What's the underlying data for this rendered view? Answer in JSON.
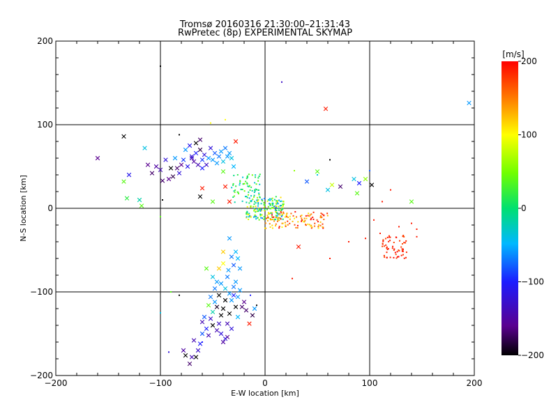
{
  "chart_data": {
    "type": "scatter",
    "title": "Tromsø 20160316 21:30:00–21:31:43",
    "subtitle": "RwPretec (8p) EXPERIMENTAL SKYMAP",
    "xlabel": "E-W location [km]",
    "ylabel": "N-S location [km]",
    "xlim": [
      -200,
      200
    ],
    "ylim": [
      -200,
      200
    ],
    "xticks": [
      "−200",
      "−100",
      "0",
      "100",
      "200"
    ],
    "yticks": [
      "−200",
      "−100",
      "0",
      "100",
      "200"
    ],
    "grid": [
      -100,
      0,
      100
    ],
    "colorbar": {
      "label": "[m/s]",
      "range": [
        -200,
        200
      ],
      "ticks": [
        "200",
        "100",
        "0",
        "−100",
        "−200"
      ],
      "colormap": "rainbow (black-purple-blue-cyan-green-yellow-orange-red)"
    },
    "series": [
      {
        "marker": "x",
        "points": [
          [
            -160,
            60,
            -160
          ],
          [
            -135,
            86,
            -200
          ],
          [
            -135,
            32,
            40
          ],
          [
            -132,
            12,
            20
          ],
          [
            -130,
            40,
            -110
          ],
          [
            -120,
            10,
            -20
          ],
          [
            -118,
            3,
            40
          ],
          [
            -115,
            72,
            -40
          ],
          [
            -112,
            52,
            -160
          ],
          [
            -108,
            42,
            -170
          ],
          [
            -104,
            50,
            -150
          ],
          [
            -100,
            46,
            -140
          ],
          [
            -98,
            33,
            -170
          ],
          [
            -95,
            58,
            -120
          ],
          [
            -92,
            35,
            -160
          ],
          [
            -90,
            48,
            -200
          ],
          [
            -88,
            38,
            -180
          ],
          [
            -86,
            60,
            -60
          ],
          [
            -84,
            48,
            -170
          ],
          [
            -82,
            42,
            -120
          ],
          [
            -80,
            52,
            -160
          ],
          [
            -78,
            58,
            -90
          ],
          [
            -76,
            70,
            -60
          ],
          [
            -74,
            50,
            -110
          ],
          [
            -72,
            75,
            -110
          ],
          [
            -70,
            60,
            -140
          ],
          [
            -68,
            56,
            -150
          ],
          [
            -66,
            66,
            -100
          ],
          [
            -64,
            52,
            -140
          ],
          [
            -62,
            70,
            -180
          ],
          [
            -60,
            58,
            -90
          ],
          [
            -58,
            64,
            -120
          ],
          [
            -56,
            52,
            -130
          ],
          [
            -54,
            60,
            -60
          ],
          [
            -52,
            72,
            -120
          ],
          [
            -50,
            58,
            -60
          ],
          [
            -48,
            66,
            -80
          ],
          [
            -46,
            54,
            -60
          ],
          [
            -44,
            62,
            -70
          ],
          [
            -42,
            68,
            -60
          ],
          [
            -40,
            56,
            -40
          ],
          [
            -38,
            72,
            -70
          ],
          [
            -36,
            62,
            -60
          ],
          [
            -34,
            66,
            -60
          ],
          [
            -32,
            60,
            -40
          ],
          [
            -30,
            50,
            -50
          ],
          [
            -62,
            82,
            -170
          ],
          [
            -66,
            78,
            -200
          ],
          [
            -70,
            62,
            -120
          ],
          [
            -60,
            48,
            -100
          ],
          [
            -28,
            80,
            190
          ],
          [
            -40,
            44,
            40
          ],
          [
            -38,
            26,
            190
          ],
          [
            -60,
            24,
            190
          ],
          [
            -62,
            14,
            -200
          ],
          [
            -34,
            8,
            190
          ],
          [
            -50,
            8,
            40
          ],
          [
            58,
            119,
            190
          ],
          [
            195,
            126,
            -60
          ],
          [
            102,
            28,
            -200
          ],
          [
            90,
            30,
            -100
          ],
          [
            96,
            35,
            60
          ],
          [
            85,
            35,
            -40
          ],
          [
            72,
            26,
            -170
          ],
          [
            64,
            28,
            80
          ],
          [
            60,
            22,
            -40
          ],
          [
            50,
            44,
            40
          ],
          [
            40,
            32,
            -80
          ],
          [
            140,
            8,
            40
          ],
          [
            88,
            18,
            40
          ],
          [
            32,
            -46,
            190
          ],
          [
            -10,
            -120,
            -60
          ],
          [
            -12,
            -128,
            -180
          ],
          [
            -15,
            -138,
            190
          ],
          [
            -18,
            -122,
            -170
          ],
          [
            -20,
            -112,
            -160
          ],
          [
            -22,
            -118,
            -170
          ],
          [
            -24,
            -98,
            -60
          ],
          [
            -26,
            -106,
            -60
          ],
          [
            -28,
            -88,
            -60
          ],
          [
            -28,
            -118,
            -200
          ],
          [
            -30,
            -94,
            -70
          ],
          [
            -30,
            -68,
            -80
          ],
          [
            -32,
            -58,
            -70
          ],
          [
            -32,
            -110,
            -60
          ],
          [
            -34,
            -102,
            -60
          ],
          [
            -34,
            -126,
            -200
          ],
          [
            -35,
            -74,
            -60
          ],
          [
            -36,
            -82,
            -70
          ],
          [
            -36,
            -138,
            -140
          ],
          [
            -38,
            -96,
            -40
          ],
          [
            -38,
            -110,
            -200
          ],
          [
            -40,
            -120,
            -200
          ],
          [
            -40,
            -66,
            100
          ],
          [
            -42,
            -90,
            -60
          ],
          [
            -42,
            -128,
            -200
          ],
          [
            -44,
            -104,
            -200
          ],
          [
            -44,
            -72,
            120
          ],
          [
            -46,
            -88,
            -60
          ],
          [
            -46,
            -118,
            -190
          ],
          [
            -48,
            -96,
            -70
          ],
          [
            -48,
            -112,
            -60
          ],
          [
            -50,
            -82,
            -40
          ],
          [
            -50,
            -124,
            -20
          ],
          [
            -52,
            -106,
            -70
          ],
          [
            -54,
            -116,
            40
          ],
          [
            -40,
            -52,
            120
          ],
          [
            -24,
            -72,
            -60
          ],
          [
            -26,
            -60,
            -50
          ],
          [
            -28,
            -52,
            -50
          ],
          [
            -30,
            -104,
            -100
          ],
          [
            -32,
            -144,
            -120
          ],
          [
            -36,
            -154,
            -160
          ],
          [
            -40,
            -160,
            -150
          ],
          [
            -42,
            -150,
            -120
          ],
          [
            -44,
            -138,
            -130
          ],
          [
            -46,
            -146,
            -140
          ],
          [
            -50,
            -140,
            -200
          ],
          [
            -52,
            -132,
            -130
          ],
          [
            -54,
            -152,
            -140
          ],
          [
            -56,
            -144,
            -100
          ],
          [
            -58,
            -130,
            -80
          ],
          [
            -60,
            -150,
            -80
          ],
          [
            -62,
            -162,
            -100
          ],
          [
            -64,
            -170,
            -130
          ],
          [
            -66,
            -178,
            -200
          ],
          [
            -68,
            -158,
            -140
          ],
          [
            -70,
            -178,
            -140
          ],
          [
            -72,
            -186,
            -170
          ],
          [
            -76,
            -176,
            -200
          ],
          [
            -78,
            -170,
            -150
          ],
          [
            -56,
            -72,
            40
          ],
          [
            -60,
            -136,
            -140
          ],
          [
            -38,
            -156,
            -120
          ],
          [
            -26,
            -130,
            -50
          ],
          [
            -34,
            -36,
            -60
          ]
        ]
      },
      {
        "marker": "dot",
        "points": [
          [
            -100,
            170,
            -200
          ],
          [
            -82,
            88,
            -200
          ],
          [
            -52,
            102,
            100
          ],
          [
            -38,
            106,
            100
          ],
          [
            16,
            151,
            -130
          ],
          [
            28,
            45,
            60
          ],
          [
            50,
            40,
            -40
          ],
          [
            62,
            58,
            -200
          ],
          [
            100,
            45,
            -80
          ],
          [
            112,
            8,
            190
          ],
          [
            120,
            22,
            190
          ],
          [
            140,
            -18,
            190
          ],
          [
            145,
            -25,
            190
          ],
          [
            145,
            -34,
            190
          ],
          [
            -98,
            10,
            -200
          ],
          [
            -100,
            -10,
            40
          ],
          [
            -90,
            -100,
            40
          ],
          [
            -82,
            -104,
            -200
          ],
          [
            -100,
            -125,
            -40
          ],
          [
            -92,
            -172,
            -120
          ],
          [
            -60,
            -160,
            -100
          ],
          [
            -8,
            -116,
            -200
          ],
          [
            -14,
            -104,
            -100
          ],
          [
            26,
            -84,
            190
          ],
          [
            62,
            -60,
            190
          ],
          [
            80,
            -40,
            190
          ],
          [
            96,
            -36,
            190
          ],
          [
            104,
            -14,
            190
          ],
          [
            110,
            -30,
            190
          ],
          [
            128,
            -22,
            190
          ]
        ]
      }
    ]
  }
}
